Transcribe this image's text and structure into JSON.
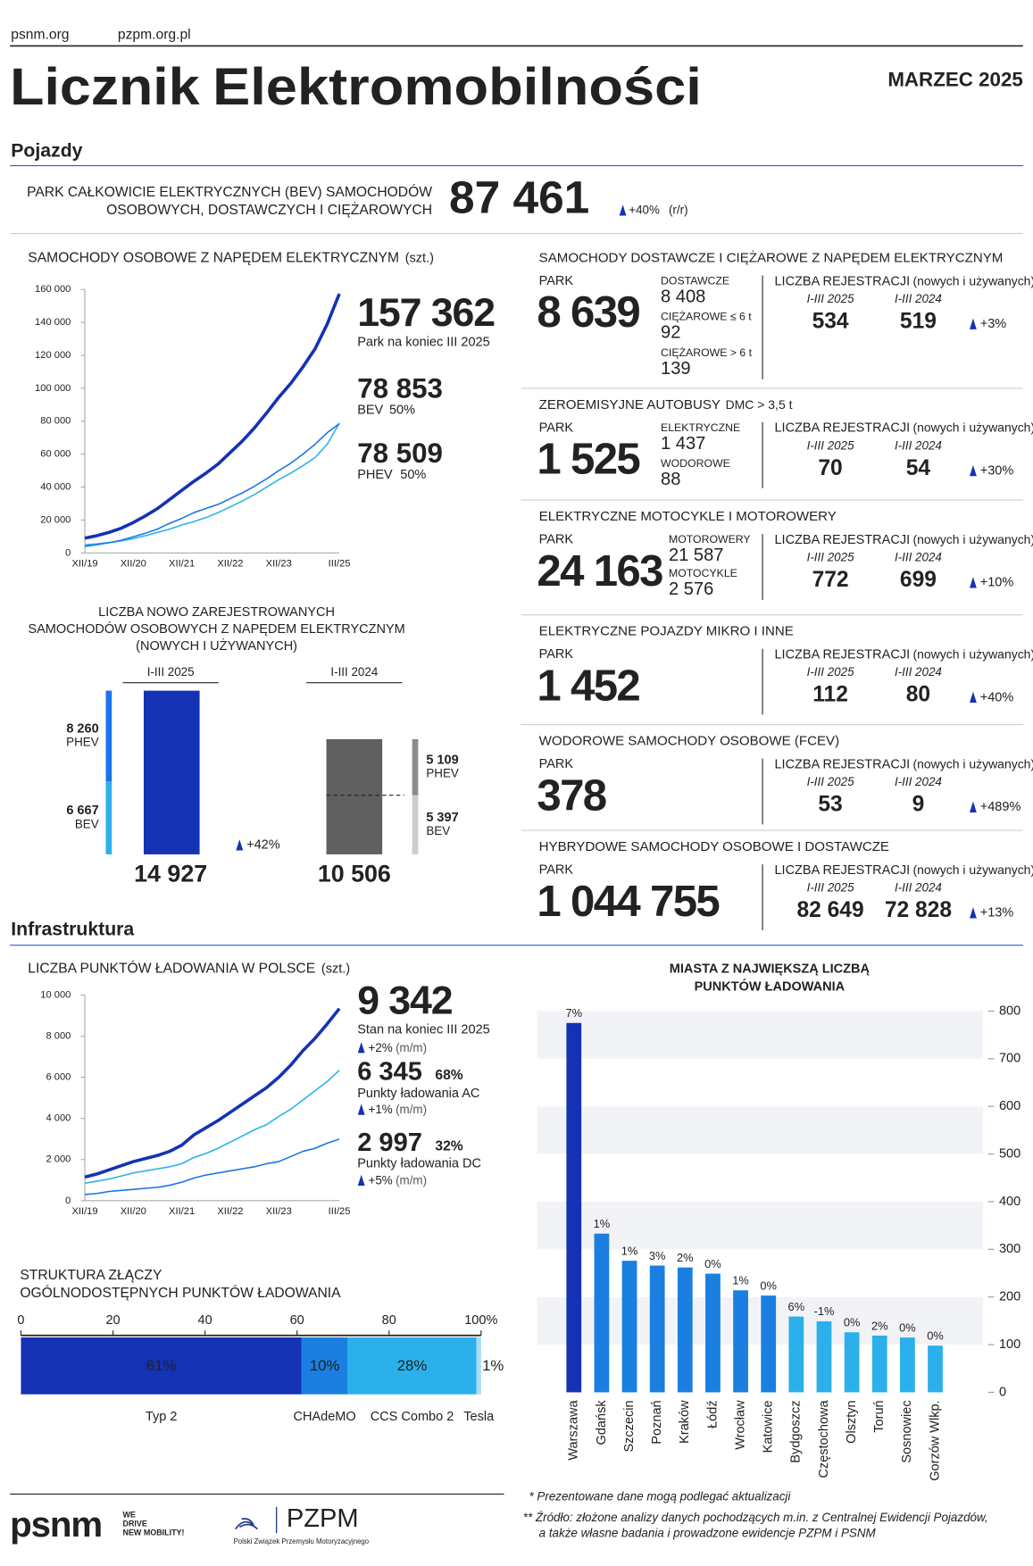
{
  "header": {
    "links": [
      "psnm.org",
      "pzpm.org.pl"
    ],
    "title_1": "Licznik",
    "title_2": "Elektromobilności",
    "date": "MARZEC 2025"
  },
  "sections": [
    "Pojazdy",
    "Infrastruktura"
  ],
  "bev_park": {
    "label": [
      "PARK CAŁKOWICIE ELEKTRYCZNYCH (BEV) SAMOCHODÓW",
      "OSOBOWYCH, DOSTAWCZYCH I CIĘŻAROWYCH"
    ],
    "value": "87 461",
    "change": "+40%",
    "change_unit": "(r/r)"
  },
  "vehicle_stats": [
    {
      "title": "SAMOCHODY DOSTAWCZE I CIĘŻAROWE Z NAPĘDEM ELEKTRYCZNYM",
      "park_label": "PARK",
      "park": "8 639",
      "breakdown": [
        {
          "label": "DOSTAWCZE",
          "value": "8 408"
        },
        {
          "label": "CIĘŻAROWE ≤ 6 t",
          "value": "92"
        },
        {
          "label": "CIĘŻAROWE > 6 t",
          "value": "139"
        }
      ],
      "reg_label": "LICZBA REJESTRACJI",
      "reg_note": "(nowych i używanych)",
      "periods": [
        "I-III 2025",
        "I-III 2024"
      ],
      "registrations": [
        "534",
        "519"
      ],
      "change": "+3%"
    },
    {
      "title": "ZEROEMISYJNE AUTOBUSY",
      "title_suffix": "DMC > 3,5 t",
      "park_label": "PARK",
      "park": "1 525",
      "breakdown": [
        {
          "label": "ELEKTRYCZNE",
          "value": "1 437"
        },
        {
          "label": "WODOROWE",
          "value": "88"
        }
      ],
      "reg_label": "LICZBA REJESTRACJI",
      "reg_note": "(nowych i używanych)",
      "periods": [
        "I-III 2025",
        "I-III 2024"
      ],
      "registrations": [
        "70",
        "54"
      ],
      "change": "+30%"
    },
    {
      "title": "ELEKTRYCZNE MOTOCYKLE I MOTOROWERY",
      "park_label": "PARK",
      "park": "24 163",
      "breakdown": [
        {
          "label": "MOTOROWERY",
          "value": "21 587"
        },
        {
          "label": "MOTOCYKLE",
          "value": "2 576"
        }
      ],
      "reg_label": "LICZBA REJESTRACJI",
      "reg_note": "(nowych i używanych)",
      "periods": [
        "I-III 2025",
        "I-III 2024"
      ],
      "registrations": [
        "772",
        "699"
      ],
      "change": "+10%"
    },
    {
      "title": "ELEKTRYCZNE POJAZDY MIKRO I INNE",
      "park_label": "PARK",
      "park": "1 452",
      "breakdown": [],
      "reg_label": "LICZBA REJESTRACJI",
      "reg_note": "(nowych i używanych)",
      "periods": [
        "I-III 2025",
        "I-III 2024"
      ],
      "registrations": [
        "112",
        "80"
      ],
      "change": "+40%"
    },
    {
      "title": "WODOROWE SAMOCHODY OSOBOWE (FCEV)",
      "park_label": "PARK",
      "park": "378",
      "breakdown": [],
      "reg_label": "LICZBA REJESTRACJI",
      "reg_note": "(nowych i używanych)",
      "periods": [
        "I-III 2025",
        "I-III 2024"
      ],
      "registrations": [
        "53",
        "9"
      ],
      "change": "+489%"
    },
    {
      "title": "HYBRYDOWE SAMOCHODY OSOBOWE I DOSTAWCZE",
      "park_label": "PARK",
      "park": "1 044 755",
      "breakdown": [],
      "reg_label": "LICZBA REJESTRACJI",
      "reg_note": "(nowych i używanych)",
      "periods": [
        "I-III 2025",
        "I-III 2024"
      ],
      "registrations": [
        "82 649",
        "72 828"
      ],
      "change": "+13%"
    }
  ],
  "chart_data": [
    {
      "type": "line",
      "title": "SAMOCHODY OSOBOWE Z NAPĘDEM ELEKTRYCZNYM",
      "unit": "(szt.)",
      "categories": [
        "XII/19",
        null,
        null,
        null,
        "XII/20",
        null,
        null,
        null,
        "XII/21",
        null,
        null,
        null,
        "XII/22",
        null,
        null,
        null,
        "XII/23",
        null,
        null,
        null,
        null,
        "III/25"
      ],
      "series": [
        {
          "name": "Park na koniec III 2025",
          "callout": "157 362",
          "color": "#1432b4",
          "width": 3.2,
          "values": [
            9000,
            10500,
            12500,
            15000,
            18500,
            22500,
            27000,
            32500,
            38000,
            43500,
            48500,
            54000,
            61000,
            68000,
            76000,
            85000,
            94500,
            103000,
            113000,
            124000,
            139000,
            157362
          ]
        },
        {
          "name": "BEV",
          "callout": "78 853",
          "share": "50%",
          "color": "#2bb0ec",
          "width": 1.4,
          "values": [
            5000,
            5500,
            6300,
            7300,
            8700,
            10500,
            12500,
            14500,
            17000,
            19000,
            21500,
            24500,
            28000,
            31500,
            35500,
            40000,
            44500,
            48500,
            53000,
            58000,
            66000,
            78853
          ]
        },
        {
          "name": "PHEV",
          "callout": "78 509",
          "share": "50%",
          "color": "#1a73e8",
          "width": 1.4,
          "values": [
            4000,
            5000,
            6200,
            7700,
            9800,
            12000,
            14500,
            18000,
            21000,
            24500,
            27000,
            29500,
            33000,
            36500,
            40500,
            45000,
            50000,
            54500,
            60000,
            66000,
            73000,
            78509
          ]
        }
      ],
      "ylim": [
        0,
        160000
      ],
      "yticks": [
        0,
        {
          "value": 20000,
          "label": "20 000"
        },
        {
          "value": 40000,
          "label": "40 000"
        },
        {
          "value": 60000,
          "label": "60 000"
        },
        {
          "value": 80000,
          "label": "80 000"
        },
        {
          "value": 100000,
          "label": "100 000"
        },
        {
          "value": 120000,
          "label": "120 000"
        },
        {
          "value": 140000,
          "label": "140 000"
        },
        {
          "value": 160000,
          "label": "160 000"
        }
      ]
    },
    {
      "type": "stacked_bar",
      "title": [
        "LICZBA NOWO ZAREJESTROWANYCH",
        "SAMOCHODÓW OSOBOWYCH Z NAPĘDEM ELEKTRYCZNYM",
        "(NOWYCH I UŻYWANYCH)"
      ],
      "categories": [
        "I-III 2025",
        "I-III 2024"
      ],
      "totals": [
        14927,
        10506
      ],
      "total_labels": [
        "14 927",
        "10 506"
      ],
      "main_colors": [
        "#1432b4",
        "#606060"
      ],
      "total_label_colors": [
        "#1432b4",
        "#666666"
      ],
      "series": [
        {
          "name": "BEV",
          "values": [
            6667,
            5397
          ],
          "value_labels": [
            "6 667",
            "5 397"
          ],
          "colors": [
            "#2bb0ec",
            "#cccccc"
          ],
          "label_colors": [
            "#2bb0ec",
            "#999999"
          ]
        },
        {
          "name": "PHEV",
          "values": [
            8260,
            5109
          ],
          "value_labels": [
            "8 260",
            "5 109"
          ],
          "colors": [
            "#1a73e8",
            "#8c8c8c"
          ],
          "label_colors": [
            "#1a73e8",
            "#222222"
          ]
        }
      ],
      "change": "+42%"
    },
    {
      "type": "line",
      "title": "LICZBA PUNKTÓW ŁADOWANIA W POLSCE",
      "unit": "(szt.)",
      "categories": [
        "XII/19",
        null,
        null,
        null,
        "XII/20",
        null,
        null,
        null,
        "XII/21",
        null,
        null,
        null,
        "XII/22",
        null,
        null,
        null,
        "XII/23",
        null,
        null,
        null,
        null,
        "III/25"
      ],
      "series": [
        {
          "name": "Stan na koniec III 2025",
          "callout": "9 342",
          "change": "+2%",
          "change_unit": "(m/m)",
          "color": "#1432b4",
          "width": 3.2,
          "values": [
            1150,
            1300,
            1500,
            1700,
            1900,
            2050,
            2200,
            2400,
            2700,
            3200,
            3550,
            3900,
            4300,
            4700,
            5100,
            5500,
            6000,
            6600,
            7300,
            7900,
            8600,
            9342
          ]
        },
        {
          "name": "Punkty ładowania AC",
          "callout": "6 345",
          "share": "68%",
          "change": "+1%",
          "change_unit": "(m/m)",
          "color": "#2bb0ec",
          "width": 1.4,
          "values": [
            850,
            950,
            1050,
            1200,
            1350,
            1450,
            1550,
            1650,
            1800,
            2100,
            2300,
            2550,
            2850,
            3150,
            3450,
            3700,
            4100,
            4450,
            4900,
            5350,
            5800,
            6345
          ]
        },
        {
          "name": "Punkty ładowania DC",
          "callout": "2 997",
          "share": "32%",
          "change": "+5%",
          "change_unit": "(m/m)",
          "color": "#1a73e8",
          "width": 1.4,
          "values": [
            300,
            350,
            450,
            500,
            550,
            600,
            650,
            750,
            900,
            1100,
            1250,
            1350,
            1450,
            1550,
            1650,
            1800,
            1900,
            2150,
            2400,
            2550,
            2800,
            2997
          ]
        }
      ],
      "ylim": [
        0,
        10000
      ],
      "yticks": [
        0,
        {
          "value": 2000,
          "label": "2 000"
        },
        {
          "value": 4000,
          "label": "4 000"
        },
        {
          "value": 6000,
          "label": "6 000"
        },
        {
          "value": 8000,
          "label": "8 000"
        },
        {
          "value": 10000,
          "label": "10 000"
        }
      ]
    },
    {
      "type": "stacked_barh",
      "title": [
        "STRUKTURA ZŁĄCZY",
        "OGÓLNODOSTĘPNYCH PUNKTÓW ŁADOWANIA"
      ],
      "categories": [
        "Typ 2",
        "CHAdeMO",
        "CCS Combo 2",
        "Tesla"
      ],
      "values": [
        61,
        10,
        28,
        1
      ],
      "value_labels": [
        "61%",
        "10%",
        "28%",
        "1%"
      ],
      "colors": [
        "#1432b4",
        "#1a7fe0",
        "#2bb0ec",
        "#a8dcf5"
      ],
      "xlim": [
        0,
        100
      ],
      "xticks": [
        0,
        20,
        40,
        60,
        80,
        {
          "value": 100,
          "label": "100%"
        }
      ]
    },
    {
      "type": "bar",
      "title": [
        "MIASTA Z NAJWIĘKSZĄ LICZBĄ",
        "PUNKTÓW ŁADOWANIA"
      ],
      "categories": [
        "Warszawa",
        "Gdańsk",
        "Szczecin",
        "Poznań",
        "Kraków",
        "Łódź",
        "Wrocław",
        "Katowice",
        "Bydgoszcz",
        "Częstochowa",
        "Olsztyn",
        "Toruń",
        "Sosnowiec",
        "Gorzów Wlkp."
      ],
      "values": [
        775,
        333,
        276,
        266,
        262,
        249,
        214,
        203,
        159,
        149,
        126,
        119,
        115,
        98
      ],
      "annotations": [
        "7%",
        "1%",
        "1%",
        "3%",
        "2%",
        "0%",
        "1%",
        "0%",
        "6%",
        "-1%",
        "0%",
        "2%",
        "0%",
        "0%"
      ],
      "colors": [
        "#1432b4",
        "#1a7fe0",
        "#1a7fe0",
        "#1a7fe0",
        "#1a7fe0",
        "#1a7fe0",
        "#1a7fe0",
        "#1a7fe0",
        "#2bb0ec",
        "#2bb0ec",
        "#2bb0ec",
        "#2bb0ec",
        "#2bb0ec",
        "#2bb0ec"
      ],
      "ylim": [
        0,
        800
      ],
      "yticks": [
        0,
        100,
        200,
        300,
        400,
        500,
        600,
        700,
        800
      ],
      "bands": true
    }
  ],
  "footer": {
    "notes": [
      "* Prezentowane dane mogą podlegać aktualizacji",
      "** Źródło: złożone analizy danych pochodzących m.in. z Centralnej Ewidencji Pojazdów,",
      "a także własne badania i prowadzone ewidencje PZPM i PSNM"
    ],
    "psnm_logo": "psnm",
    "psnm_slogan": [
      "WE",
      "DRIVE",
      "NEW MOBILITY!"
    ],
    "pzpm_logo": "PZPM",
    "pzpm_name": "Polski Związek Przemysłu Motoryzacyjnego"
  }
}
